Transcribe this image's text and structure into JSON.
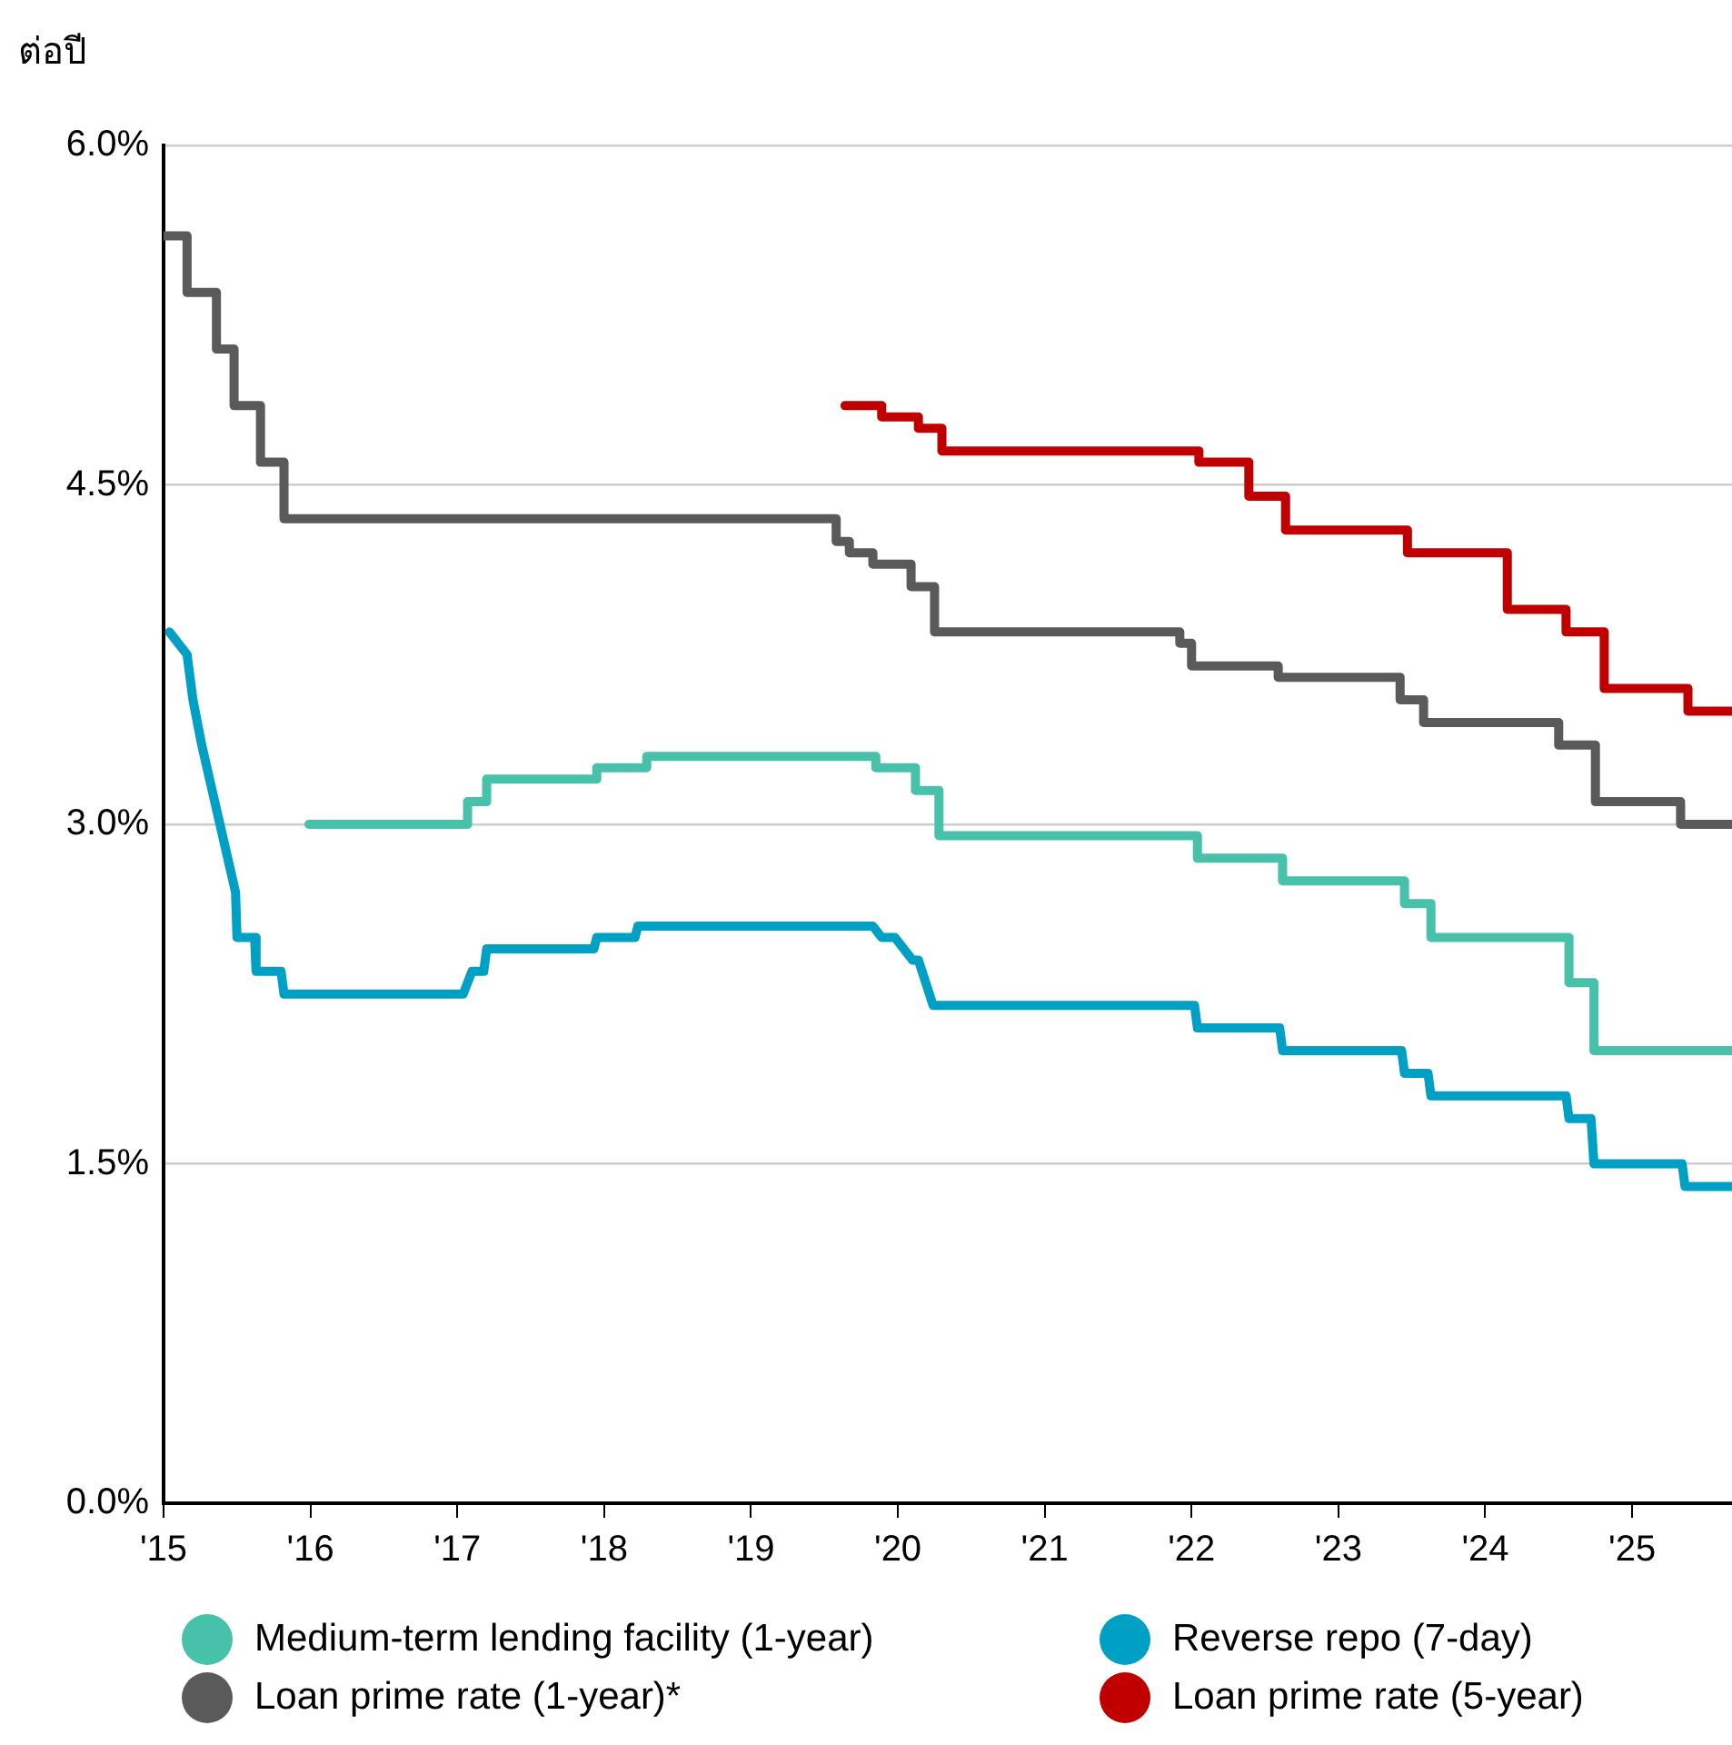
{
  "chart_data": {
    "type": "step",
    "ylabel": "ต่อปี",
    "xlim": [
      2015,
      2025.68
    ],
    "xticks": [
      {
        "value": 2015,
        "label": "'15"
      },
      {
        "value": 2016,
        "label": "'16"
      },
      {
        "value": 2017,
        "label": "'17"
      },
      {
        "value": 2018,
        "label": "'18"
      },
      {
        "value": 2019,
        "label": "'19"
      },
      {
        "value": 2020,
        "label": "'20"
      },
      {
        "value": 2021,
        "label": "'21"
      },
      {
        "value": 2022,
        "label": "'22"
      },
      {
        "value": 2023,
        "label": "'23"
      },
      {
        "value": 2024,
        "label": "'24"
      },
      {
        "value": 2025,
        "label": "'25"
      }
    ],
    "ylim": [
      0,
      6
    ],
    "yticks": [
      {
        "value": 0,
        "label": "0.0%"
      },
      {
        "value": 1.5,
        "label": "1.5%"
      },
      {
        "value": 3,
        "label": "3.0%"
      },
      {
        "value": 4.5,
        "label": "4.5%"
      },
      {
        "value": 6,
        "label": "6.0%"
      }
    ],
    "grid": "y",
    "legend": "bottom",
    "marker": "none",
    "line_style": "solid",
    "series": [
      {
        "name": "Medium-term lending facility (1-year)",
        "color": "#48c1aa",
        "x": [
          2015.99,
          2017.07,
          2017.2,
          2017.95,
          2018.29,
          2019.85,
          2020.12,
          2020.28,
          2022.04,
          2022.62,
          2023.45,
          2023.63,
          2024.57,
          2024.74,
          2025.68
        ],
        "values": [
          3.0,
          3.1,
          3.2,
          3.25,
          3.3,
          3.25,
          3.15,
          2.95,
          2.85,
          2.75,
          2.65,
          2.5,
          2.3,
          2.0,
          2.0
        ]
      },
      {
        "name": "Reverse repo (7-day)",
        "type": "line",
        "color": "#00a0c4",
        "x": [
          2015.04,
          2015.16,
          2015.2,
          2015.26,
          2015.49,
          2015.5,
          2015.62,
          2015.63,
          2015.8,
          2015.82,
          2017.04,
          2017.1,
          2017.18,
          2017.2,
          2017.93,
          2017.95,
          2018.21,
          2018.23,
          2019.83,
          2019.89,
          2019.98,
          2020.1,
          2020.14,
          2020.24,
          2022.02,
          2022.04,
          2022.6,
          2022.62,
          2023.43,
          2023.45,
          2023.61,
          2023.63,
          2024.55,
          2024.57,
          2024.72,
          2024.74,
          2025.34,
          2025.36,
          2025.68
        ],
        "values": [
          3.85,
          3.75,
          3.55,
          3.35,
          2.7,
          2.5,
          2.5,
          2.35,
          2.35,
          2.25,
          2.25,
          2.35,
          2.35,
          2.45,
          2.45,
          2.5,
          2.5,
          2.55,
          2.55,
          2.5,
          2.5,
          2.4,
          2.4,
          2.2,
          2.2,
          2.1,
          2.1,
          2.0,
          2.0,
          1.9,
          1.9,
          1.8,
          1.8,
          1.7,
          1.7,
          1.5,
          1.5,
          1.4,
          1.4
        ]
      },
      {
        "name": "Loan prime rate (1-year)*",
        "color": "#5a5a5a",
        "x": [
          2015,
          2015.16,
          2015.36,
          2015.48,
          2015.66,
          2015.82,
          2019.58,
          2019.67,
          2019.83,
          2020.09,
          2020.25,
          2021.92,
          2022.0,
          2022.59,
          2023.42,
          2023.58,
          2024.5,
          2024.75,
          2025.33,
          2025.68
        ],
        "values": [
          5.6,
          5.35,
          5.1,
          4.85,
          4.6,
          4.35,
          4.25,
          4.2,
          4.15,
          4.05,
          3.85,
          3.8,
          3.7,
          3.65,
          3.55,
          3.45,
          3.35,
          3.1,
          3.0,
          3.0
        ]
      },
      {
        "name": "Loan prime rate (5-year)",
        "color": "#c00000",
        "x": [
          2019.64,
          2019.89,
          2020.14,
          2020.3,
          2022.05,
          2022.39,
          2022.64,
          2023.47,
          2024.15,
          2024.55,
          2024.81,
          2025.38,
          2025.68
        ],
        "values": [
          4.85,
          4.8,
          4.75,
          4.65,
          4.6,
          4.45,
          4.3,
          4.2,
          3.95,
          3.85,
          3.6,
          3.5,
          3.5
        ]
      }
    ]
  }
}
